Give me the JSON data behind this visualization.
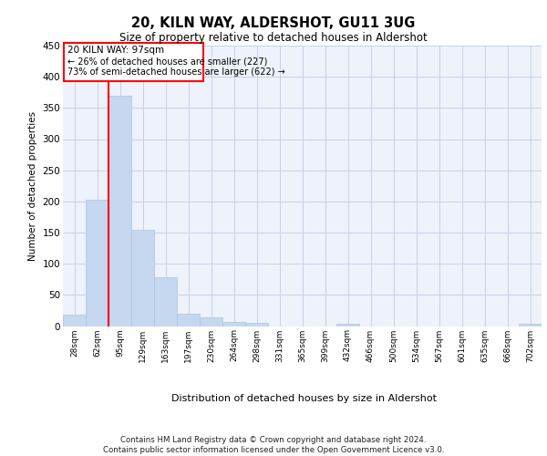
{
  "title1": "20, KILN WAY, ALDERSHOT, GU11 3UG",
  "title2": "Size of property relative to detached houses in Aldershot",
  "xlabel": "Distribution of detached houses by size in Aldershot",
  "ylabel": "Number of detached properties",
  "footnote": "Contains HM Land Registry data © Crown copyright and database right 2024.\nContains public sector information licensed under the Open Government Licence v3.0.",
  "bar_labels": [
    "28sqm",
    "62sqm",
    "95sqm",
    "129sqm",
    "163sqm",
    "197sqm",
    "230sqm",
    "264sqm",
    "298sqm",
    "331sqm",
    "365sqm",
    "399sqm",
    "432sqm",
    "466sqm",
    "500sqm",
    "534sqm",
    "567sqm",
    "601sqm",
    "635sqm",
    "668sqm",
    "702sqm"
  ],
  "bar_values": [
    18,
    202,
    370,
    155,
    78,
    20,
    14,
    7,
    5,
    0,
    0,
    0,
    4,
    0,
    0,
    0,
    0,
    0,
    0,
    0,
    4
  ],
  "bar_color": "#c5d8f0",
  "bar_edge_color": "#aac4e0",
  "ylim": [
    0,
    450
  ],
  "yticks": [
    0,
    50,
    100,
    150,
    200,
    250,
    300,
    350,
    400,
    450
  ],
  "property_label": "20 KILN WAY: 97sqm",
  "annotation_line1": "← 26% of detached houses are smaller (227)",
  "annotation_line2": "73% of semi-detached houses are larger (622) →",
  "bg_color": "#eef2fb",
  "grid_color": "#c8d0e8"
}
